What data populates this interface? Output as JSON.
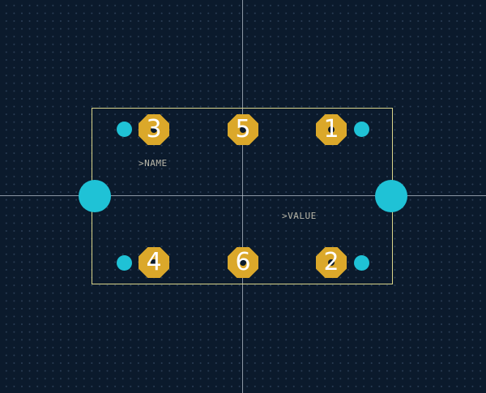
{
  "labels": {
    "name": ">NAME",
    "value": ">VALUE"
  },
  "pads": [
    {
      "id": "pad-3",
      "number": "3"
    },
    {
      "id": "pad-5",
      "number": "5"
    },
    {
      "id": "pad-1",
      "number": "1"
    },
    {
      "id": "pad-4",
      "number": "4"
    },
    {
      "id": "pad-6",
      "number": "6"
    },
    {
      "id": "pad-2",
      "number": "2"
    }
  ],
  "colors": {
    "background": "#0b1a2c",
    "pad": "#dba82a",
    "via": "#1fc2d6",
    "outline": "#d9d48a",
    "label": "#b9b7a8"
  }
}
